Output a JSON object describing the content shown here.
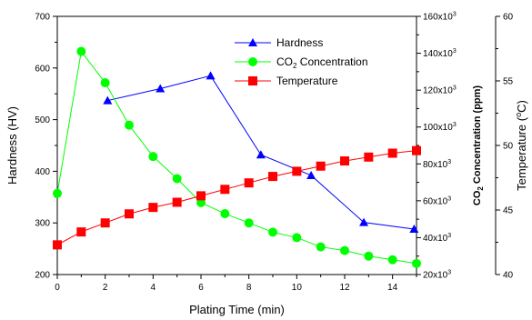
{
  "chart_data": {
    "type": "line",
    "xlabel": "Plating Time (min)",
    "xlim": [
      0,
      15
    ],
    "x_ticks": [
      "0",
      "2",
      "4",
      "6",
      "8",
      "10",
      "12",
      "14"
    ],
    "y_axes": {
      "hardness": {
        "label": "Hardness (HV)",
        "lim": [
          200,
          700
        ],
        "ticks": [
          "200",
          "300",
          "400",
          "500",
          "600",
          "700"
        ]
      },
      "co2": {
        "label": "CO2 Concentration (ppm)",
        "lim": [
          20000,
          160000
        ],
        "ticks": [
          "20x10³",
          "40x10³",
          "60x10³",
          "80x10³",
          "100x10³",
          "120x10³",
          "140x10³",
          "160x10³"
        ]
      },
      "temperature": {
        "label": "Temperature (°C)",
        "lim": [
          40,
          60
        ],
        "ticks": [
          "40",
          "45",
          "50",
          "55",
          "60"
        ]
      }
    },
    "legend_position": "top-center",
    "grid": false,
    "series": [
      {
        "name": "Hardness",
        "axis": "hardness",
        "color": "#0000ff",
        "marker": "triangle",
        "x": [
          2.1,
          4.3,
          6.4,
          8.5,
          10.6,
          12.8,
          14.9
        ],
        "y": [
          537,
          560,
          585,
          432,
          392,
          301,
          288
        ]
      },
      {
        "name": "CO2 Concentration",
        "axis": "co2",
        "color": "#00ff00",
        "marker": "circle",
        "x": [
          0,
          1,
          2,
          3,
          4,
          5,
          6,
          7,
          8,
          9,
          10,
          11,
          12,
          13,
          14,
          15
        ],
        "y": [
          64000,
          141000,
          124000,
          101000,
          84000,
          72000,
          59000,
          53000,
          48000,
          43000,
          40000,
          35000,
          33000,
          30000,
          28000,
          26000
        ]
      },
      {
        "name": "Temperature",
        "axis": "temperature",
        "color": "#ff0000",
        "marker": "square",
        "x": [
          0,
          1,
          2,
          3,
          4,
          5,
          6,
          7,
          8,
          9,
          10,
          11,
          12,
          13,
          14,
          15
        ],
        "y": [
          42.3,
          43.3,
          44.0,
          44.7,
          45.2,
          45.6,
          46.1,
          46.6,
          47.1,
          47.6,
          48.0,
          48.4,
          48.8,
          49.1,
          49.4,
          49.6
        ]
      }
    ]
  }
}
